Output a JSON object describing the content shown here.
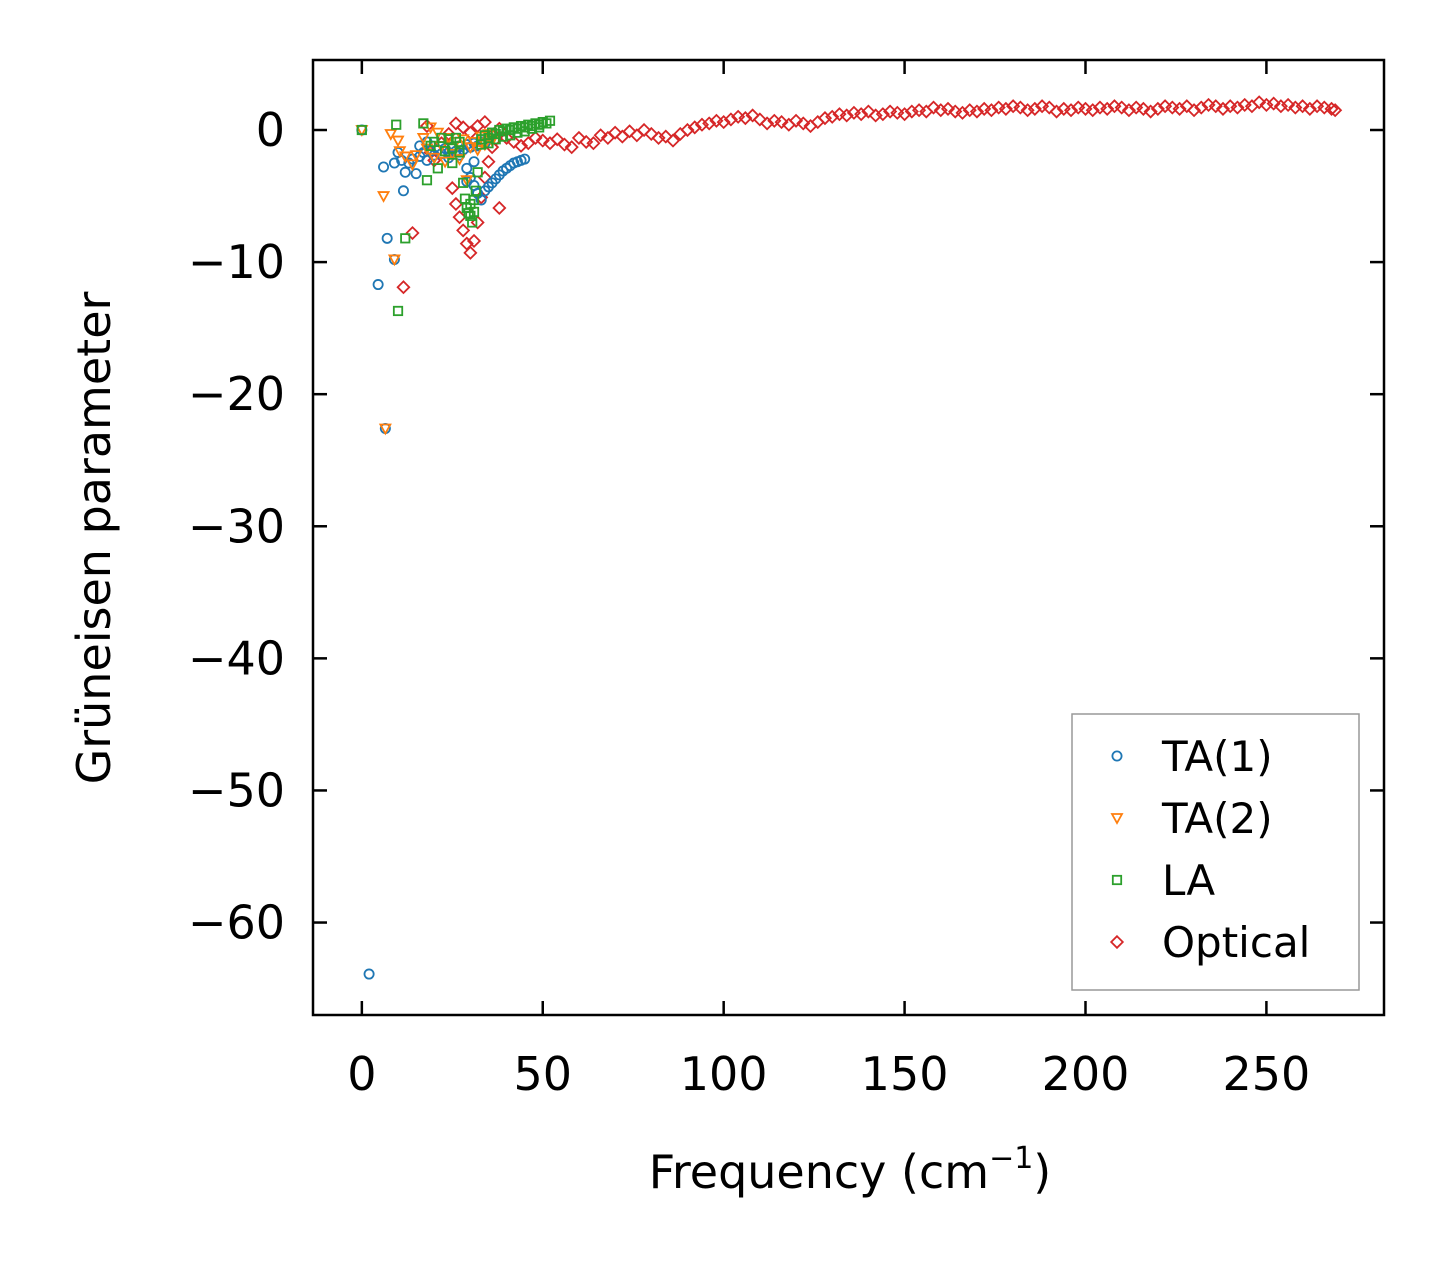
{
  "chart_data": {
    "type": "scatter",
    "title": "",
    "xlabel": "Frequency (cm",
    "xlabel_sup": "−1",
    "xlabel_close": ")",
    "ylabel": "Grüneisen parameter",
    "xlim": [
      -13.5,
      282.5
    ],
    "ylim": [
      -67,
      5.3
    ],
    "xticks": [
      0,
      50,
      100,
      150,
      200,
      250
    ],
    "xtick_labels": [
      "0",
      "50",
      "100",
      "150",
      "200",
      "250"
    ],
    "yticks": [
      0,
      -10,
      -20,
      -30,
      -40,
      -50,
      -60
    ],
    "ytick_labels": [
      "0",
      "−10",
      "−20",
      "−30",
      "−40",
      "−50",
      "−60"
    ],
    "grid": false,
    "legend_position": "lower-right",
    "series": [
      {
        "name": "TA(1)",
        "marker": "circle",
        "color": "#1f77b4",
        "points": [
          [
            0,
            0
          ],
          [
            2,
            -63.9
          ],
          [
            4.5,
            -11.7
          ],
          [
            6,
            -2.8
          ],
          [
            6.5,
            -22.6
          ],
          [
            7,
            -8.2
          ],
          [
            9,
            -9.8
          ],
          [
            9,
            -2.5
          ],
          [
            10,
            -1.7
          ],
          [
            11,
            -2.3
          ],
          [
            11.5,
            -4.6
          ],
          [
            12,
            -3.2
          ],
          [
            13,
            -2.5
          ],
          [
            14,
            -2.2
          ],
          [
            15,
            -3.3
          ],
          [
            16,
            -2.0
          ],
          [
            17,
            -1.7
          ],
          [
            18,
            -2.3
          ],
          [
            19,
            -1.6
          ],
          [
            20,
            -1.9
          ],
          [
            21,
            -1.5
          ],
          [
            22,
            -1.8
          ],
          [
            23,
            -1.4
          ],
          [
            24,
            -1.7
          ],
          [
            25,
            -1.3
          ],
          [
            26,
            -1.6
          ],
          [
            27,
            -1.2
          ],
          [
            28,
            -1.5
          ],
          [
            29,
            -1.1
          ],
          [
            30,
            -1.3
          ],
          [
            31,
            -1.0
          ],
          [
            32,
            -1.2
          ],
          [
            33,
            -0.9
          ],
          [
            34,
            -1.0
          ],
          [
            35,
            -0.7
          ],
          [
            29,
            -2.9
          ],
          [
            30,
            -3.6
          ],
          [
            31,
            -4.2
          ],
          [
            32,
            -4.8
          ],
          [
            33,
            -5.3
          ],
          [
            34,
            -4.6
          ],
          [
            35,
            -4.3
          ],
          [
            36,
            -4.0
          ],
          [
            37,
            -3.7
          ],
          [
            38,
            -3.4
          ],
          [
            39,
            -3.1
          ],
          [
            40,
            -2.9
          ],
          [
            41,
            -2.7
          ],
          [
            42,
            -2.5
          ],
          [
            43,
            -2.4
          ],
          [
            44,
            -2.3
          ],
          [
            45,
            -2.2
          ],
          [
            29,
            -3.9
          ],
          [
            31,
            -2.4
          ],
          [
            18,
            -0.9
          ],
          [
            16,
            -1.2
          ],
          [
            24,
            -2.1
          ],
          [
            27,
            -1.9
          ]
        ]
      },
      {
        "name": "TA(2)",
        "marker": "triangle_down",
        "color": "#ff7f0e",
        "points": [
          [
            0,
            0
          ],
          [
            6,
            -5.0
          ],
          [
            6.5,
            -22.6
          ],
          [
            8,
            -0.3
          ],
          [
            9,
            -9.8
          ],
          [
            10,
            -0.8
          ],
          [
            10.5,
            -1.6
          ],
          [
            12,
            -2.0
          ],
          [
            14,
            -2.6
          ],
          [
            15,
            -1.9
          ],
          [
            17,
            -0.6
          ],
          [
            18,
            -1.4
          ],
          [
            19,
            0.2
          ],
          [
            20,
            -2.1
          ],
          [
            21,
            -0.2
          ],
          [
            22,
            -1.2
          ],
          [
            23,
            -2.4
          ],
          [
            24,
            -0.6
          ],
          [
            25,
            -1.8
          ],
          [
            26,
            -0.9
          ],
          [
            27,
            -2.2
          ],
          [
            28,
            -0.7
          ],
          [
            29,
            -3.8
          ],
          [
            30,
            -1.3
          ],
          [
            31,
            -0.9
          ],
          [
            32,
            -1.5
          ],
          [
            33,
            -0.5
          ],
          [
            34,
            -1.1
          ],
          [
            35,
            -0.3
          ],
          [
            36,
            -0.8
          ]
        ]
      },
      {
        "name": "LA",
        "marker": "square",
        "color": "#2ca02c",
        "points": [
          [
            0,
            0
          ],
          [
            9.5,
            0.4
          ],
          [
            10,
            -13.7
          ],
          [
            12,
            -8.2
          ],
          [
            17,
            0.5
          ],
          [
            18,
            -3.8
          ],
          [
            19,
            -1.2
          ],
          [
            20,
            -0.9
          ],
          [
            21,
            -2.9
          ],
          [
            22,
            -0.6
          ],
          [
            23,
            -1.6
          ],
          [
            24,
            -0.7
          ],
          [
            25,
            -2.5
          ],
          [
            26,
            -0.6
          ],
          [
            27,
            -0.9
          ],
          [
            28,
            -4.0
          ],
          [
            28.5,
            -5.2
          ],
          [
            29,
            -5.9
          ],
          [
            29.5,
            -6.3
          ],
          [
            30,
            -6.5
          ],
          [
            30.5,
            -7.0
          ],
          [
            31,
            -6.2
          ],
          [
            31.5,
            -4.6
          ],
          [
            32,
            -3.2
          ],
          [
            33,
            -0.7
          ],
          [
            34,
            -0.4
          ],
          [
            35,
            -0.6
          ],
          [
            36,
            -0.2
          ],
          [
            37,
            -0.3
          ],
          [
            38,
            0.0
          ],
          [
            39,
            -0.1
          ],
          [
            40,
            0.1
          ],
          [
            41,
            0.0
          ],
          [
            42,
            0.2
          ],
          [
            43,
            0.1
          ],
          [
            44,
            0.3
          ],
          [
            45,
            0.2
          ],
          [
            46,
            0.4
          ],
          [
            47,
            0.3
          ],
          [
            48,
            0.5
          ],
          [
            49,
            0.4
          ],
          [
            50,
            0.6
          ],
          [
            51,
            0.5
          ],
          [
            52,
            0.7
          ],
          [
            33,
            -1.1
          ],
          [
            35,
            -1.0
          ],
          [
            37,
            -0.7
          ],
          [
            39,
            -0.5
          ],
          [
            41,
            -0.4
          ],
          [
            43,
            -0.2
          ],
          [
            45,
            -0.1
          ],
          [
            47,
            0.1
          ],
          [
            49,
            0.2
          ],
          [
            27,
            -1.7
          ],
          [
            25,
            -1.4
          ],
          [
            30,
            -5.6
          ],
          [
            31,
            -5.3
          ]
        ]
      },
      {
        "name": "Optical",
        "marker": "diamond",
        "color": "#d62728",
        "points": [
          [
            11.5,
            -11.9
          ],
          [
            14,
            -7.8
          ],
          [
            18,
            0.3
          ],
          [
            19,
            -1.7
          ],
          [
            20,
            -2.3
          ],
          [
            22,
            -1.0
          ],
          [
            24,
            -0.3
          ],
          [
            25,
            -4.4
          ],
          [
            26,
            -5.6
          ],
          [
            27,
            -6.6
          ],
          [
            28,
            -7.6
          ],
          [
            29,
            -8.6
          ],
          [
            30,
            -9.3
          ],
          [
            31,
            -8.4
          ],
          [
            32,
            -7.0
          ],
          [
            33,
            -5.1
          ],
          [
            34,
            -3.6
          ],
          [
            35,
            -2.4
          ],
          [
            36,
            -1.3
          ],
          [
            37,
            -0.7
          ],
          [
            38,
            -5.9
          ],
          [
            26,
            0.5
          ],
          [
            28,
            0.2
          ],
          [
            30,
            -0.2
          ],
          [
            32,
            0.3
          ],
          [
            34,
            0.6
          ],
          [
            36,
            -0.4
          ],
          [
            38,
            0.1
          ],
          [
            40,
            -0.6
          ],
          [
            42,
            -0.9
          ],
          [
            44,
            -1.2
          ],
          [
            46,
            -1.0
          ],
          [
            48,
            -0.6
          ],
          [
            50,
            -0.8
          ],
          [
            52,
            -1.0
          ],
          [
            54,
            -0.7
          ],
          [
            56,
            -1.1
          ],
          [
            58,
            -1.3
          ],
          [
            60,
            -0.6
          ],
          [
            62,
            -0.9
          ],
          [
            64,
            -1.0
          ],
          [
            66,
            -0.4
          ],
          [
            68,
            -0.6
          ],
          [
            70,
            -0.2
          ],
          [
            72,
            -0.5
          ],
          [
            74,
            -0.1
          ],
          [
            76,
            -0.4
          ],
          [
            78,
            0.0
          ],
          [
            80,
            -0.3
          ],
          [
            82,
            -0.6
          ],
          [
            84,
            -0.5
          ],
          [
            86,
            -0.8
          ],
          [
            88,
            -0.3
          ],
          [
            90,
            0.0
          ],
          [
            92,
            0.2
          ],
          [
            94,
            0.4
          ],
          [
            96,
            0.5
          ],
          [
            98,
            0.7
          ],
          [
            100,
            0.6
          ],
          [
            102,
            0.8
          ],
          [
            104,
            1.0
          ],
          [
            106,
            0.9
          ],
          [
            108,
            1.1
          ],
          [
            110,
            0.8
          ],
          [
            112,
            0.5
          ],
          [
            114,
            0.7
          ],
          [
            116,
            0.6
          ],
          [
            118,
            0.4
          ],
          [
            120,
            0.7
          ],
          [
            122,
            0.5
          ],
          [
            124,
            0.3
          ],
          [
            126,
            0.6
          ],
          [
            128,
            0.9
          ],
          [
            130,
            1.0
          ],
          [
            132,
            1.2
          ],
          [
            134,
            1.1
          ],
          [
            136,
            1.3
          ],
          [
            138,
            1.2
          ],
          [
            140,
            1.4
          ],
          [
            142,
            1.1
          ],
          [
            144,
            1.2
          ],
          [
            146,
            1.4
          ],
          [
            148,
            1.3
          ],
          [
            150,
            1.2
          ],
          [
            152,
            1.4
          ],
          [
            154,
            1.5
          ],
          [
            156,
            1.4
          ],
          [
            158,
            1.7
          ],
          [
            160,
            1.5
          ],
          [
            162,
            1.6
          ],
          [
            164,
            1.4
          ],
          [
            166,
            1.3
          ],
          [
            168,
            1.5
          ],
          [
            170,
            1.4
          ],
          [
            172,
            1.6
          ],
          [
            174,
            1.5
          ],
          [
            176,
            1.7
          ],
          [
            178,
            1.6
          ],
          [
            180,
            1.8
          ],
          [
            182,
            1.7
          ],
          [
            184,
            1.5
          ],
          [
            186,
            1.6
          ],
          [
            188,
            1.8
          ],
          [
            190,
            1.7
          ],
          [
            192,
            1.4
          ],
          [
            194,
            1.6
          ],
          [
            196,
            1.5
          ],
          [
            198,
            1.7
          ],
          [
            200,
            1.6
          ],
          [
            202,
            1.5
          ],
          [
            204,
            1.7
          ],
          [
            206,
            1.6
          ],
          [
            208,
            1.8
          ],
          [
            210,
            1.7
          ],
          [
            212,
            1.5
          ],
          [
            214,
            1.7
          ],
          [
            216,
            1.6
          ],
          [
            218,
            1.4
          ],
          [
            220,
            1.6
          ],
          [
            222,
            1.8
          ],
          [
            224,
            1.7
          ],
          [
            226,
            1.6
          ],
          [
            228,
            1.8
          ],
          [
            230,
            1.5
          ],
          [
            232,
            1.7
          ],
          [
            234,
            1.9
          ],
          [
            236,
            1.8
          ],
          [
            238,
            1.6
          ],
          [
            240,
            1.8
          ],
          [
            242,
            1.7
          ],
          [
            244,
            1.9
          ],
          [
            246,
            1.8
          ],
          [
            248,
            2.1
          ],
          [
            250,
            1.9
          ],
          [
            252,
            2.0
          ],
          [
            254,
            1.8
          ],
          [
            256,
            1.9
          ],
          [
            258,
            1.7
          ],
          [
            260,
            1.8
          ],
          [
            262,
            1.6
          ],
          [
            264,
            1.8
          ],
          [
            266,
            1.7
          ],
          [
            268,
            1.6
          ],
          [
            269,
            1.5
          ]
        ]
      }
    ]
  }
}
